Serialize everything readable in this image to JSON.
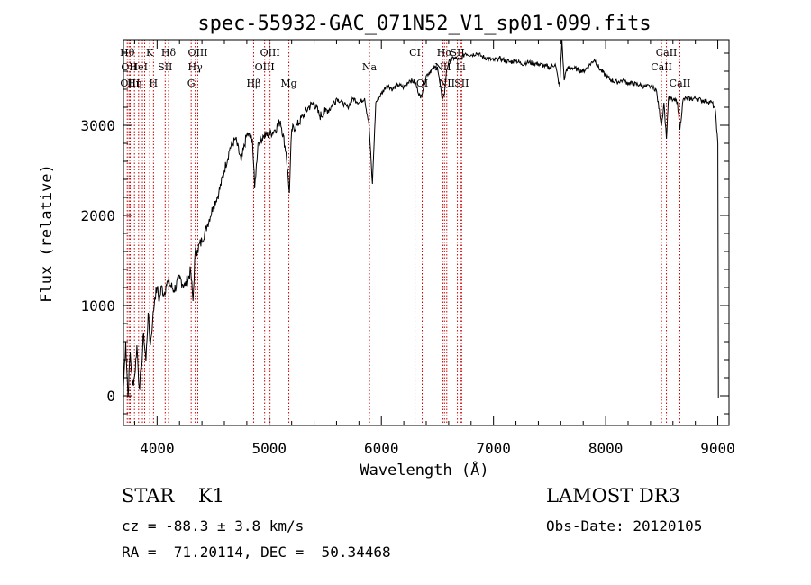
{
  "chart_data": {
    "type": "line",
    "title": "spec-55932-GAC_071N52_V1_sp01-099.fits",
    "xlabel": "Wavelength (Å)",
    "ylabel": "Flux (relative)",
    "xlim": [
      3700,
      9100
    ],
    "ylim": [
      -330,
      3950
    ],
    "x_ticks": [
      4000,
      5000,
      6000,
      7000,
      8000,
      9000
    ],
    "y_ticks": [
      0,
      1000,
      2000,
      3000
    ],
    "grid": false,
    "spectrum_color": "#000000",
    "line_color": "#cc0000",
    "series": [
      {
        "x": [
          3700,
          3720,
          3740,
          3760,
          3780,
          3800,
          3820,
          3840,
          3860,
          3880,
          3900,
          3920,
          3940,
          3960,
          3980,
          4000,
          4020,
          4040,
          4060,
          4080,
          4100,
          4150,
          4200,
          4250,
          4300,
          4320,
          4340,
          4360,
          4400,
          4450,
          4500,
          4550,
          4600,
          4650,
          4700,
          4750,
          4800,
          4850,
          4870,
          4900,
          4950,
          5000,
          5050,
          5100,
          5150,
          5180,
          5200,
          5250,
          5300,
          5350,
          5400,
          5450,
          5500,
          5550,
          5600,
          5650,
          5700,
          5750,
          5800,
          5850,
          5890,
          5920,
          5950,
          6000,
          6050,
          6100,
          6150,
          6200,
          6250,
          6300,
          6350,
          6400,
          6450,
          6500,
          6540,
          6563,
          6580,
          6600,
          6650,
          6700,
          6750,
          6800,
          6850,
          6900,
          6950,
          7000,
          7050,
          7100,
          7150,
          7200,
          7250,
          7300,
          7350,
          7400,
          7450,
          7500,
          7550,
          7590,
          7610,
          7630,
          7650,
          7700,
          7750,
          7800,
          7850,
          7900,
          7950,
          8000,
          8050,
          8100,
          8150,
          8200,
          8250,
          8300,
          8350,
          8400,
          8450,
          8498,
          8520,
          8542,
          8560,
          8600,
          8640,
          8662,
          8690,
          8720,
          8760,
          8800,
          8850,
          8900,
          8950,
          8980,
          9000,
          9005
        ],
        "y": [
          100,
          600,
          -10,
          480,
          120,
          220,
          560,
          80,
          300,
          700,
          380,
          920,
          560,
          830,
          1100,
          1200,
          1050,
          1220,
          1120,
          1230,
          1260,
          1170,
          1300,
          1220,
          1380,
          1050,
          1600,
          1620,
          1720,
          1900,
          2100,
          2250,
          2500,
          2750,
          2850,
          2600,
          2900,
          2850,
          2300,
          2800,
          2880,
          2900,
          2950,
          3050,
          2700,
          2250,
          2950,
          3000,
          3100,
          3200,
          3250,
          3100,
          3150,
          3200,
          3300,
          3250,
          3200,
          3300,
          3250,
          3300,
          3000,
          2350,
          3250,
          3350,
          3450,
          3400,
          3450,
          3420,
          3500,
          3480,
          3300,
          3550,
          3620,
          3650,
          3300,
          3350,
          3600,
          3700,
          3750,
          3720,
          3800,
          3780,
          3800,
          3760,
          3740,
          3720,
          3740,
          3720,
          3700,
          3720,
          3680,
          3700,
          3690,
          3680,
          3660,
          3640,
          3680,
          3420,
          3950,
          3500,
          3620,
          3640,
          3620,
          3600,
          3660,
          3730,
          3620,
          3550,
          3500,
          3480,
          3500,
          3470,
          3460,
          3450,
          3430,
          3430,
          3400,
          3000,
          3250,
          2850,
          3300,
          3280,
          3260,
          2950,
          3280,
          3300,
          3290,
          3300,
          3280,
          3270,
          3250,
          3150,
          2800,
          -20
        ]
      }
    ],
    "line_marks": [
      {
        "wavelength": 3734,
        "label": "Hθ",
        "row": 1
      },
      {
        "wavelength": 3750,
        "label": "OII",
        "row": 2
      },
      {
        "wavelength": 3760,
        "label": "OIII",
        "row": 3
      },
      {
        "wavelength": 3798,
        "label": "Hη",
        "row": 3
      },
      {
        "wavelength": 3835,
        "label": "HeI",
        "row": 2
      },
      {
        "wavelength": 3869,
        "label": "",
        "row": 0
      },
      {
        "wavelength": 3889,
        "label": "",
        "row": 0
      },
      {
        "wavelength": 3934,
        "label": "K",
        "row": 1
      },
      {
        "wavelength": 3968,
        "label": "H",
        "row": 3
      },
      {
        "wavelength": 4072,
        "label": "SII",
        "row": 2
      },
      {
        "wavelength": 4102,
        "label": "Hδ",
        "row": 1
      },
      {
        "wavelength": 4304,
        "label": "G",
        "row": 3
      },
      {
        "wavelength": 4340,
        "label": "Hγ",
        "row": 2
      },
      {
        "wavelength": 4363,
        "label": "OIII",
        "row": 1
      },
      {
        "wavelength": 4861,
        "label": "Hβ",
        "row": 3
      },
      {
        "wavelength": 4959,
        "label": "OIII",
        "row": 2
      },
      {
        "wavelength": 5007,
        "label": "OIII",
        "row": 1
      },
      {
        "wavelength": 5175,
        "label": "Mg",
        "row": 3
      },
      {
        "wavelength": 5894,
        "label": "Na",
        "row": 2
      },
      {
        "wavelength": 6300,
        "label": "CI",
        "row": 1
      },
      {
        "wavelength": 6364,
        "label": "OI",
        "row": 3
      },
      {
        "wavelength": 6548,
        "label": "NII",
        "row": 2
      },
      {
        "wavelength": 6563,
        "label": "Hα",
        "row": 1
      },
      {
        "wavelength": 6583,
        "label": "NII",
        "row": 3
      },
      {
        "wavelength": 6678,
        "label": "SII",
        "row": 1
      },
      {
        "wavelength": 6707,
        "label": "Li",
        "row": 2
      },
      {
        "wavelength": 6716,
        "label": "SII",
        "row": 3
      },
      {
        "wavelength": 8498,
        "label": "CaII",
        "row": 2
      },
      {
        "wavelength": 8542,
        "label": "CaII",
        "row": 1
      },
      {
        "wavelength": 8662,
        "label": "CaII",
        "row": 3
      }
    ]
  },
  "info": {
    "class_text": "STAR    K1",
    "survey_text": "LAMOST DR3",
    "redshift_text": "cz = -88.3 ± 3.8 km/s",
    "obsdate_text": "Obs-Date: 20120105",
    "coords_text": "RA =  71.20114, DEC =  50.34468"
  }
}
